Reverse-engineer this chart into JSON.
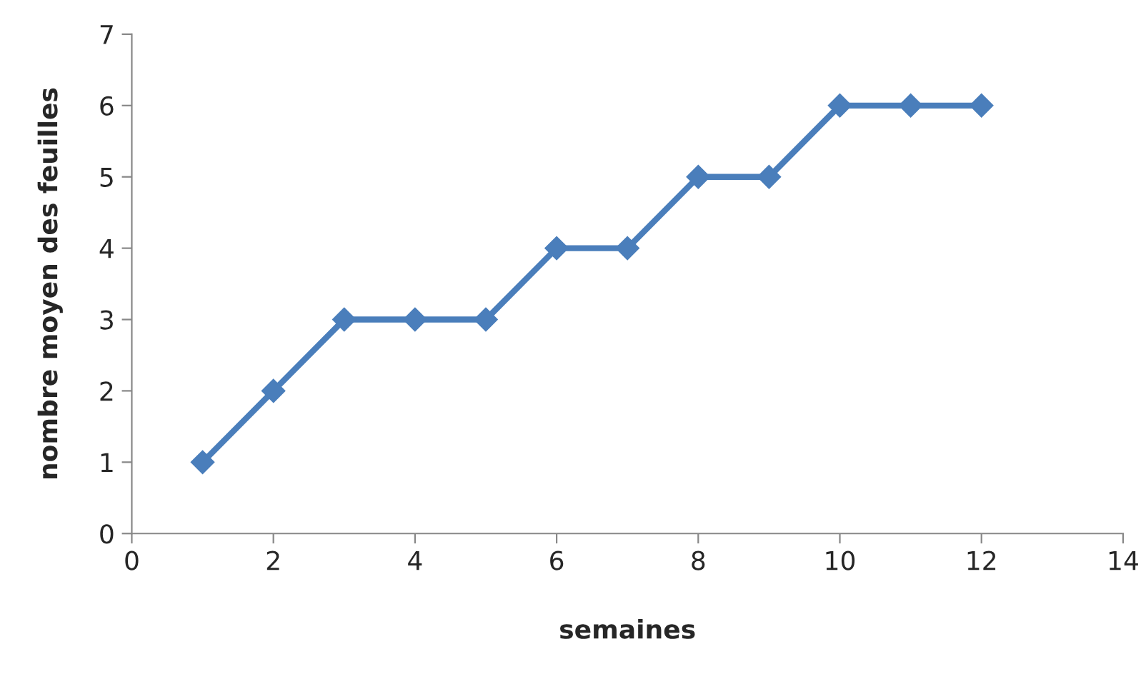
{
  "chart_data": {
    "type": "line",
    "xlabel": "semaines",
    "ylabel": "nombre moyen des feuilles",
    "x": [
      1,
      2,
      3,
      4,
      5,
      6,
      7,
      8,
      9,
      10,
      11,
      12
    ],
    "series": [
      {
        "color": "#4a7ebb",
        "values": [
          1,
          2,
          3,
          3,
          3,
          4,
          4,
          5,
          5,
          6,
          6,
          6
        ]
      }
    ],
    "xlim": [
      0,
      14
    ],
    "xticks": [
      0,
      2,
      4,
      6,
      8,
      10,
      12,
      14
    ],
    "ylim": [
      0,
      7
    ],
    "yticks": [
      0,
      1,
      2,
      3,
      4,
      5,
      6,
      7
    ],
    "grid": false,
    "legend": false,
    "marker": "diamond",
    "line_style": "solid"
  }
}
